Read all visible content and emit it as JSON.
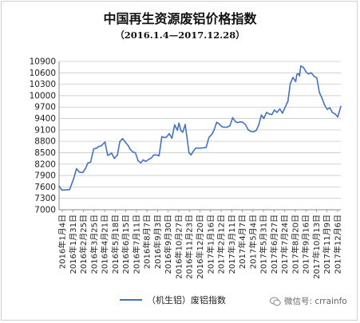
{
  "title": "中国再生资源废铝价格指数",
  "subtitle": "（2016.1.4—2017.12.28）",
  "watermark": "微信号: crrainfo",
  "colors": {
    "series": "#4472c4",
    "axis": "#888888",
    "grid": "#c8c8c8"
  },
  "chart_data": {
    "type": "line",
    "ylim": [
      7000,
      10900
    ],
    "yticks": [
      7000,
      7300,
      7600,
      7900,
      8200,
      8500,
      8800,
      9100,
      9400,
      9700,
      10000,
      10300,
      10600,
      10900
    ],
    "grid": "horizontal",
    "legend_position": "bottom",
    "xtick_labels": [
      "2016年1月4日",
      "2016年1月31日",
      "2016年2月25日",
      "2016年3月25日",
      "2016年4月21日",
      "2016年5月18日",
      "2016年6月15日",
      "2016年7月11日",
      "2016年8月7日",
      "2016年9月3日",
      "2016年9月30日",
      "2016年10月27日",
      "2016年11月23日",
      "2016年12月20日",
      "2017年1月16日",
      "2017年2月12日",
      "2017年3月11日",
      "2017年4月7日",
      "2017年5月4日",
      "2017年5月31日",
      "2017年6月27日",
      "2017年7月24日",
      "2017年8月20日",
      "2017年9月16日",
      "2017年10月13日",
      "2017年11月9日",
      "2017年12月6日"
    ],
    "series": [
      {
        "name": "（机生铝）废铝指数",
        "x": [
          "2016-01-04",
          "2016-01-11",
          "2016-01-18",
          "2016-01-31",
          "2016-02-10",
          "2016-02-18",
          "2016-02-25",
          "2016-03-05",
          "2016-03-12",
          "2016-03-18",
          "2016-03-25",
          "2016-04-02",
          "2016-04-10",
          "2016-04-14",
          "2016-04-21",
          "2016-05-01",
          "2016-05-08",
          "2016-05-14",
          "2016-05-18",
          "2016-05-25",
          "2016-06-02",
          "2016-06-08",
          "2016-06-15",
          "2016-06-22",
          "2016-06-30",
          "2016-07-04",
          "2016-07-11",
          "2016-07-18",
          "2016-07-25",
          "2016-08-01",
          "2016-08-07",
          "2016-08-14",
          "2016-08-21",
          "2016-08-28",
          "2016-09-03",
          "2016-09-10",
          "2016-09-17",
          "2016-09-24",
          "2016-09-30",
          "2016-10-06",
          "2016-10-13",
          "2016-10-20",
          "2016-10-27",
          "2016-11-03",
          "2016-11-07",
          "2016-11-12",
          "2016-11-17",
          "2016-11-23",
          "2016-11-28",
          "2016-12-03",
          "2016-12-08",
          "2016-12-14",
          "2016-12-20",
          "2016-12-27",
          "2017-01-03",
          "2017-01-10",
          "2017-01-16",
          "2017-01-23",
          "2017-02-01",
          "2017-02-06",
          "2017-02-12",
          "2017-02-19",
          "2017-02-26",
          "2017-03-04",
          "2017-03-11",
          "2017-03-18",
          "2017-03-25",
          "2017-04-01",
          "2017-04-07",
          "2017-04-13",
          "2017-04-20",
          "2017-04-27",
          "2017-05-04",
          "2017-05-11",
          "2017-05-18",
          "2017-05-25",
          "2017-05-31",
          "2017-06-07",
          "2017-06-13",
          "2017-06-20",
          "2017-06-27",
          "2017-07-04",
          "2017-07-10",
          "2017-07-17",
          "2017-07-24",
          "2017-07-31",
          "2017-08-07",
          "2017-08-14",
          "2017-08-20",
          "2017-08-27",
          "2017-09-03",
          "2017-09-06",
          "2017-09-10",
          "2017-09-13",
          "2017-09-16",
          "2017-09-23",
          "2017-09-30",
          "2017-10-06",
          "2017-10-13",
          "2017-10-20",
          "2017-10-27",
          "2017-11-03",
          "2017-11-09",
          "2017-11-16",
          "2017-11-23",
          "2017-11-30",
          "2017-12-06",
          "2017-12-13",
          "2017-12-20",
          "2017-12-28"
        ],
        "values": [
          7620,
          7520,
          7520,
          7530,
          7800,
          8080,
          7990,
          7980,
          8090,
          8230,
          8250,
          8600,
          8620,
          8660,
          8680,
          8780,
          8430,
          8460,
          8490,
          8350,
          8440,
          8790,
          8870,
          8780,
          8680,
          8600,
          8520,
          8500,
          8290,
          8230,
          8310,
          8270,
          8320,
          8360,
          8440,
          8440,
          8420,
          8920,
          8900,
          8910,
          9000,
          8880,
          9230,
          9090,
          9280,
          9080,
          9040,
          9240,
          8880,
          8500,
          8440,
          8540,
          8620,
          8620,
          8620,
          8630,
          8640,
          8900,
          9000,
          9120,
          9300,
          9250,
          9180,
          9170,
          9170,
          9210,
          9420,
          9320,
          9290,
          9310,
          9300,
          9240,
          9100,
          9060,
          9050,
          9090,
          9230,
          9490,
          9400,
          9560,
          9520,
          9500,
          9620,
          9560,
          9650,
          9540,
          9700,
          9850,
          10310,
          10480,
          10370,
          10560,
          10580,
          10520,
          10780,
          10740,
          10620,
          10570,
          10600,
          10510,
          10470,
          10080,
          9950,
          9760,
          9640,
          9680,
          9560,
          9520,
          9440,
          9720
        ]
      }
    ]
  }
}
